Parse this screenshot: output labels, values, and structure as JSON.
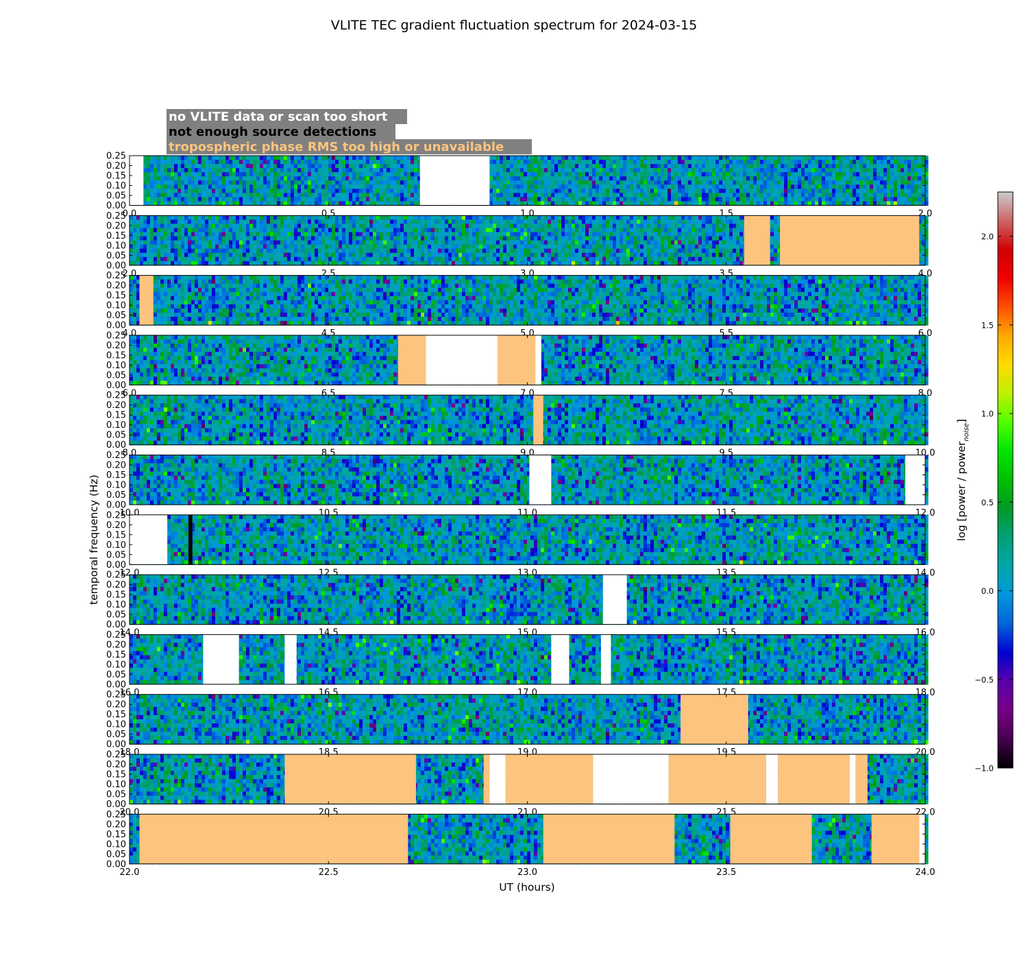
{
  "chart_data": {
    "type": "heatmap",
    "title": "VLITE TEC gradient fluctuation spectrum for 2024-03-15",
    "xlabel": "UT (hours)",
    "ylabel": "temporal frequency (Hz)",
    "ylim": [
      0,
      0.25
    ],
    "y_ticks": [
      "0.00",
      "0.05",
      "0.10",
      "0.15",
      "0.20",
      "0.25"
    ],
    "colorbar": {
      "label_main": "log [power / power",
      "label_sub": "noise",
      "label_end": "]",
      "range": [
        -1.0,
        2.25
      ],
      "ticks": [
        "−1.0",
        "−0.5",
        "0.0",
        "0.5",
        "1.0",
        "1.5",
        "2.0"
      ],
      "colormap": "nipy_spectral"
    },
    "legend": {
      "placement": "top-left",
      "background": "#808080",
      "entries": [
        {
          "label": "no VLITE data or scan too short",
          "color": "#ffffff"
        },
        {
          "label": "not enough source detections",
          "color": "#000000"
        },
        {
          "label": "tropospheric phase RMS too high or unavailable",
          "color": "#fdc47f"
        }
      ]
    },
    "flag_colors": {
      "nodata": "#ffffff",
      "nodetect": "#000000",
      "trop": "#fdc47f"
    },
    "panels": [
      {
        "xlim": [
          0,
          2
        ],
        "x_ticks": [
          "0.0",
          "0.5",
          "1.0",
          "1.5",
          "2.0"
        ],
        "flags": [
          {
            "type": "nodata",
            "start": 0.0,
            "end": 0.035
          },
          {
            "type": "nodata",
            "start": 0.73,
            "end": 0.905
          }
        ]
      },
      {
        "xlim": [
          2,
          4
        ],
        "x_ticks": [
          "2.0",
          "2.5",
          "3.0",
          "3.5",
          "4.0"
        ],
        "flags": [
          {
            "type": "trop",
            "start": 3.545,
            "end": 3.61
          },
          {
            "type": "trop",
            "start": 3.635,
            "end": 3.985
          }
        ]
      },
      {
        "xlim": [
          4,
          6
        ],
        "x_ticks": [
          "4.0",
          "4.5",
          "5.0",
          "5.5",
          "6.0"
        ],
        "flags": [
          {
            "type": "trop",
            "start": 4.025,
            "end": 4.06
          }
        ]
      },
      {
        "xlim": [
          6,
          8
        ],
        "x_ticks": [
          "6.0",
          "6.5",
          "7.0",
          "7.5",
          "8.0"
        ],
        "flags": [
          {
            "type": "trop",
            "start": 6.675,
            "end": 6.745
          },
          {
            "type": "nodata",
            "start": 6.745,
            "end": 6.925
          },
          {
            "type": "trop",
            "start": 6.925,
            "end": 7.02
          },
          {
            "type": "nodata",
            "start": 7.02,
            "end": 7.035
          }
        ]
      },
      {
        "xlim": [
          8,
          10
        ],
        "x_ticks": [
          "8.0",
          "8.5",
          "9.0",
          "9.5",
          "10.0"
        ],
        "flags": [
          {
            "type": "trop",
            "start": 9.015,
            "end": 9.04
          }
        ]
      },
      {
        "xlim": [
          10,
          12
        ],
        "x_ticks": [
          "10.0",
          "10.5",
          "11.0",
          "11.5",
          "12.0"
        ],
        "flags": [
          {
            "type": "nodata",
            "start": 11.005,
            "end": 11.06
          },
          {
            "type": "nodata",
            "start": 11.95,
            "end": 12.0
          }
        ]
      },
      {
        "xlim": [
          12,
          14
        ],
        "x_ticks": [
          "12.0",
          "12.5",
          "13.0",
          "13.5",
          "14.0"
        ],
        "flags": [
          {
            "type": "nodata",
            "start": 12.0,
            "end": 12.095
          },
          {
            "type": "nodetect",
            "start": 12.148,
            "end": 12.158
          }
        ]
      },
      {
        "xlim": [
          14,
          16
        ],
        "x_ticks": [
          "14.0",
          "14.5",
          "15.0",
          "15.5",
          "16.0"
        ],
        "flags": [
          {
            "type": "nodata",
            "start": 15.19,
            "end": 15.25
          }
        ]
      },
      {
        "xlim": [
          16,
          18
        ],
        "x_ticks": [
          "16.0",
          "16.5",
          "17.0",
          "17.5",
          "18.0"
        ],
        "flags": [
          {
            "type": "nodata",
            "start": 16.185,
            "end": 16.275
          },
          {
            "type": "nodata",
            "start": 16.39,
            "end": 16.42
          },
          {
            "type": "nodata",
            "start": 17.06,
            "end": 17.105
          },
          {
            "type": "nodata",
            "start": 17.185,
            "end": 17.21
          }
        ]
      },
      {
        "xlim": [
          18,
          20
        ],
        "x_ticks": [
          "18.0",
          "18.5",
          "19.0",
          "19.5",
          "20.0"
        ],
        "flags": [
          {
            "type": "trop",
            "start": 19.385,
            "end": 19.555
          }
        ]
      },
      {
        "xlim": [
          20,
          22
        ],
        "x_ticks": [
          "20.0",
          "20.5",
          "21.0",
          "21.5",
          "22.0"
        ],
        "flags": [
          {
            "type": "trop",
            "start": 20.39,
            "end": 20.72
          },
          {
            "type": "trop",
            "start": 20.89,
            "end": 20.905
          },
          {
            "type": "nodata",
            "start": 20.905,
            "end": 20.945
          },
          {
            "type": "trop",
            "start": 20.945,
            "end": 21.165
          },
          {
            "type": "nodata",
            "start": 21.165,
            "end": 21.355
          },
          {
            "type": "trop",
            "start": 21.355,
            "end": 21.6
          },
          {
            "type": "nodata",
            "start": 21.6,
            "end": 21.63
          },
          {
            "type": "trop",
            "start": 21.63,
            "end": 21.81
          },
          {
            "type": "nodata",
            "start": 21.81,
            "end": 21.825
          },
          {
            "type": "trop",
            "start": 21.825,
            "end": 21.855
          }
        ]
      },
      {
        "xlim": [
          22,
          24
        ],
        "x_ticks": [
          "22.0",
          "22.5",
          "23.0",
          "23.5",
          "24.0"
        ],
        "flags": [
          {
            "type": "trop",
            "start": 22.025,
            "end": 22.7
          },
          {
            "type": "trop",
            "start": 23.04,
            "end": 23.37
          },
          {
            "type": "trop",
            "start": 23.51,
            "end": 23.715
          },
          {
            "type": "trop",
            "start": 23.865,
            "end": 23.985
          },
          {
            "type": "nodata",
            "start": 23.985,
            "end": 24.0
          }
        ]
      }
    ]
  }
}
